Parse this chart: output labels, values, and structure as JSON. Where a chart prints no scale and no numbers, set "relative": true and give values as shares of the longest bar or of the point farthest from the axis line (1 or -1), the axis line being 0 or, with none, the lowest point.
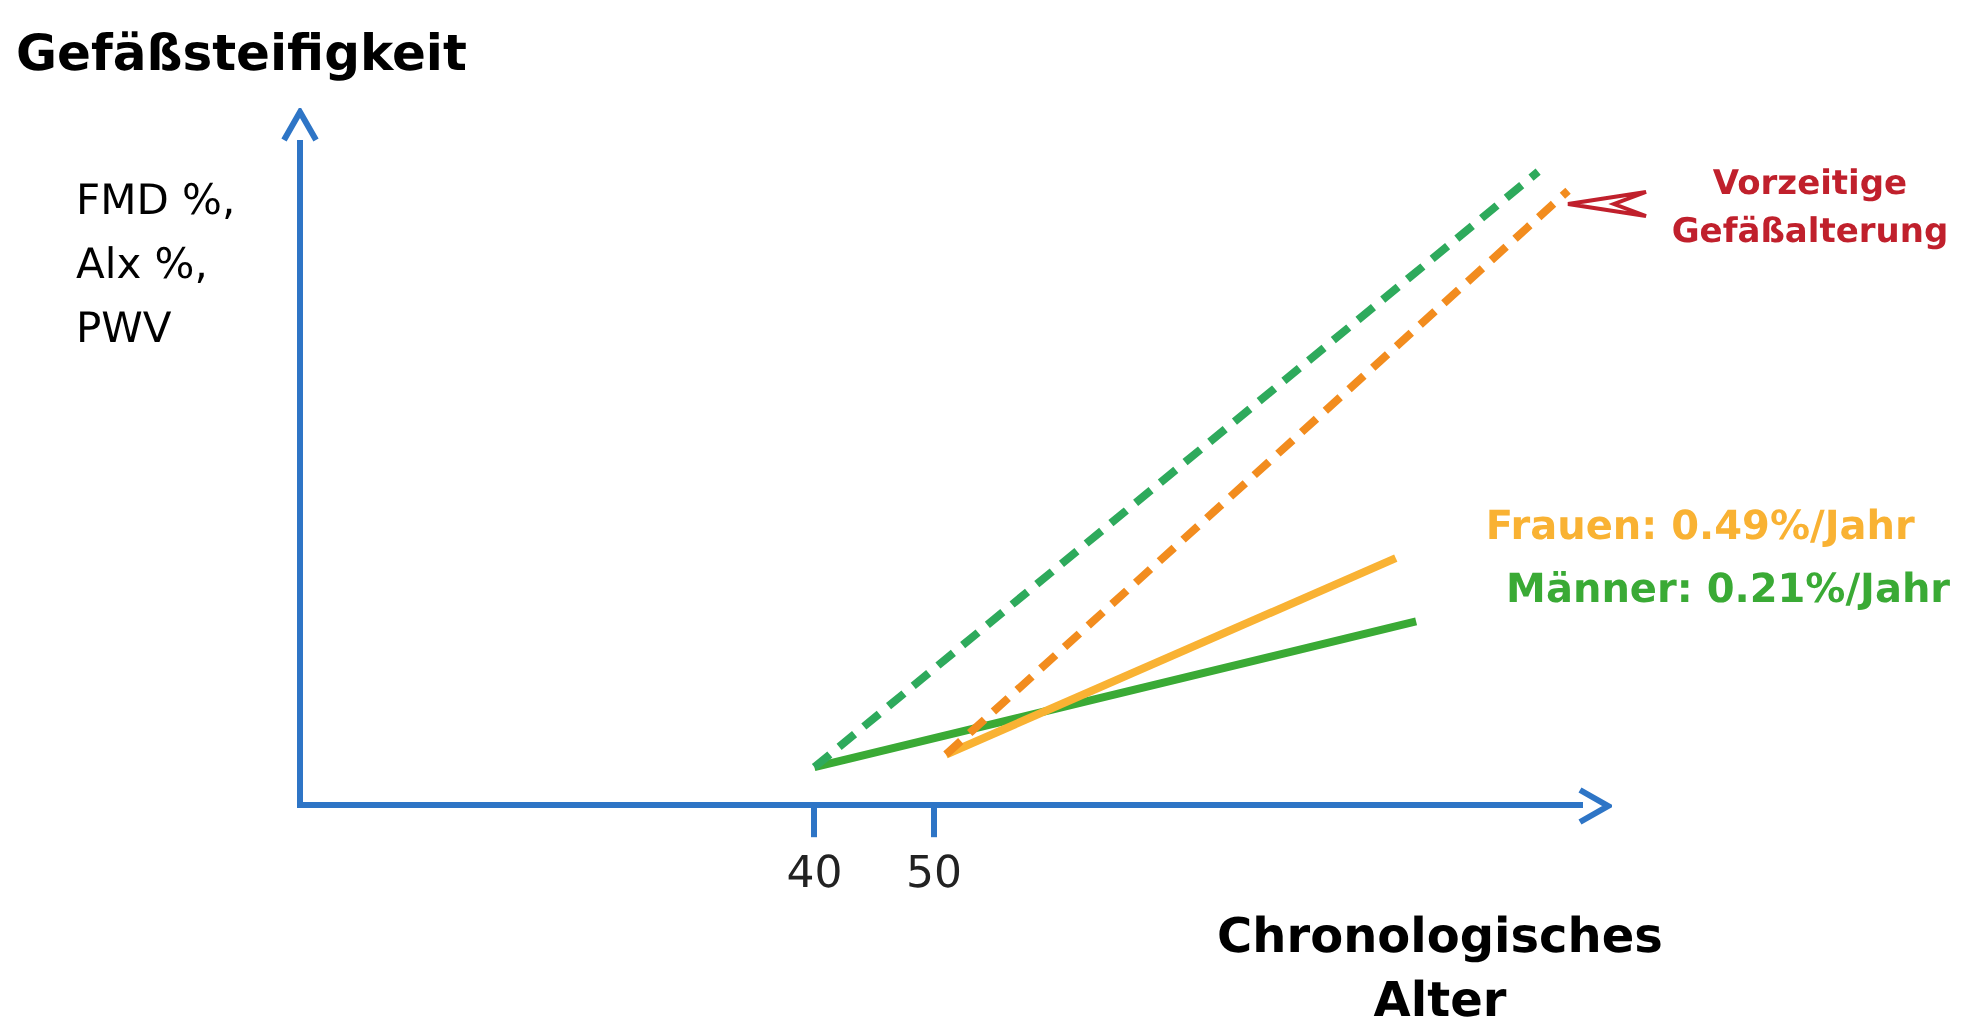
{
  "chart_data": {
    "type": "line",
    "title": "Gefäßsteifigkeit",
    "ylabel": "FMD %,\nAlx %,\nPWV",
    "xlabel": "Chronologisches Alter",
    "relative": true,
    "xlim": [
      -3,
      104
    ],
    "xticks": [
      40,
      50
    ],
    "grid": false,
    "legend": false,
    "marker": "none",
    "annotations": [
      "Vorzeitige Gefäßalterung"
    ],
    "series": [
      {
        "color": "#2eaa5c",
        "x": [
          40,
          100.5
        ],
        "values": [
          0.06,
          1
        ],
        "line_style": "dashed"
      },
      {
        "color": "#f28c1e",
        "x": [
          51,
          103
        ],
        "values": [
          0.08,
          0.97
        ],
        "line_style": "dashed"
      },
      {
        "name": "Frauen: 0.49%/Jahr",
        "color": "#f9b233",
        "x": [
          51,
          88.6
        ],
        "values": [
          0.08,
          0.39
        ],
        "line_style": "solid"
      },
      {
        "name": "Männer: 0.21%/Jahr",
        "color": "#3aaa35",
        "x": [
          40,
          90.3
        ],
        "values": [
          0.06,
          0.29
        ],
        "line_style": "solid"
      }
    ]
  }
}
